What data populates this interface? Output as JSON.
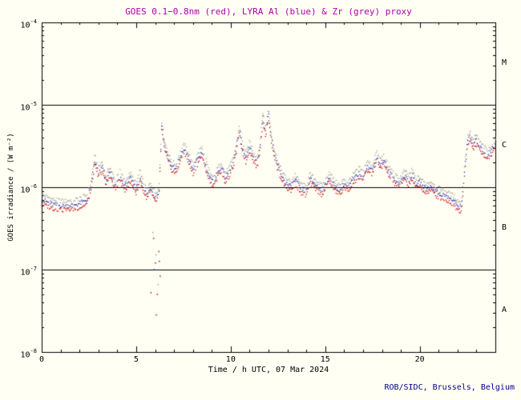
{
  "page": {
    "background": "#fffff4"
  },
  "title": {
    "text": "GOES 0.1−0.8nm (red), LYRA Al (blue) & Zr (grey) proxy",
    "color": "#aa00aa"
  },
  "footer": {
    "text": "ROB/SIDC, Brussels, Belgium",
    "color": "#00008b"
  },
  "colors": {
    "red": "#cc0000",
    "blue": "#2828b4",
    "grey": "#a0a0a0",
    "axis": "#000000",
    "tick_text": "#000000"
  },
  "chart_data": {
    "type": "scatter",
    "title": "GOES 0.1−0.8nm (red), LYRA Al (blue) & Zr (grey) proxy",
    "xlabel": "Time / h UTC, 07 Mar 2024",
    "ylabel": "GOES irradiance / (W m⁻²)",
    "xlim": [
      0,
      24
    ],
    "x_major_ticks": [
      0,
      5,
      10,
      15,
      20
    ],
    "x_minor_step": 1,
    "ylog_lim": [
      -8,
      -4
    ],
    "y_decade_ticks": [
      -4,
      -5,
      -6,
      -7,
      -8
    ],
    "grid": false,
    "legend": "in-title",
    "class_boundary_lines_log": [
      -5,
      -6,
      -7
    ],
    "flare_classes": [
      {
        "label": "M",
        "center_log": -4.5
      },
      {
        "label": "C",
        "center_log": -5.5
      },
      {
        "label": "B",
        "center_log": -6.5
      },
      {
        "label": "A",
        "center_log": -7.5
      }
    ],
    "series": [
      {
        "name": "LYRA Zr proxy",
        "color_key": "grey",
        "log_offset": 0.11
      },
      {
        "name": "LYRA Al proxy",
        "color_key": "blue",
        "log_offset": 0.05
      },
      {
        "name": "GOES 0.1-0.8nm",
        "color_key": "red",
        "log_offset": 0.0
      }
    ],
    "base_keypoints_log10": [
      [
        0.0,
        -6.2
      ],
      [
        0.3,
        -6.23
      ],
      [
        0.6,
        -6.26
      ],
      [
        0.9,
        -6.27
      ],
      [
        1.2,
        -6.28
      ],
      [
        1.5,
        -6.27
      ],
      [
        1.8,
        -6.26
      ],
      [
        2.1,
        -6.24
      ],
      [
        2.4,
        -6.2
      ],
      [
        2.6,
        -6.05
      ],
      [
        2.8,
        -5.73
      ],
      [
        3.0,
        -5.88
      ],
      [
        3.2,
        -5.8
      ],
      [
        3.4,
        -5.98
      ],
      [
        3.6,
        -5.86
      ],
      [
        3.9,
        -6.04
      ],
      [
        4.1,
        -5.9
      ],
      [
        4.4,
        -6.04
      ],
      [
        4.7,
        -5.94
      ],
      [
        5.0,
        -6.08
      ],
      [
        5.2,
        -5.91
      ],
      [
        5.45,
        -6.1
      ],
      [
        5.6,
        -6.14
      ],
      [
        5.75,
        -6.05
      ],
      [
        6.0,
        -6.18
      ],
      [
        6.2,
        -6.12
      ],
      [
        6.28,
        -5.7
      ],
      [
        6.35,
        -5.28
      ],
      [
        6.5,
        -5.55
      ],
      [
        6.7,
        -5.7
      ],
      [
        6.9,
        -5.8
      ],
      [
        7.1,
        -5.84
      ],
      [
        7.3,
        -5.7
      ],
      [
        7.55,
        -5.58
      ],
      [
        7.8,
        -5.72
      ],
      [
        8.0,
        -5.84
      ],
      [
        8.2,
        -5.74
      ],
      [
        8.45,
        -5.62
      ],
      [
        8.7,
        -5.8
      ],
      [
        8.9,
        -5.94
      ],
      [
        9.1,
        -6.0
      ],
      [
        9.3,
        -5.88
      ],
      [
        9.5,
        -5.8
      ],
      [
        9.7,
        -5.94
      ],
      [
        9.9,
        -5.88
      ],
      [
        10.1,
        -5.78
      ],
      [
        10.3,
        -5.58
      ],
      [
        10.45,
        -5.35
      ],
      [
        10.6,
        -5.55
      ],
      [
        10.8,
        -5.7
      ],
      [
        11.0,
        -5.55
      ],
      [
        11.2,
        -5.68
      ],
      [
        11.4,
        -5.76
      ],
      [
        11.55,
        -5.55
      ],
      [
        11.7,
        -5.2
      ],
      [
        11.85,
        -5.38
      ],
      [
        12.0,
        -5.15
      ],
      [
        12.15,
        -5.45
      ],
      [
        12.3,
        -5.65
      ],
      [
        12.6,
        -5.86
      ],
      [
        12.9,
        -6.0
      ],
      [
        13.2,
        -6.05
      ],
      [
        13.4,
        -5.95
      ],
      [
        13.7,
        -6.07
      ],
      [
        14.0,
        -6.1
      ],
      [
        14.2,
        -5.95
      ],
      [
        14.5,
        -6.02
      ],
      [
        14.8,
        -6.09
      ],
      [
        15.0,
        -6.04
      ],
      [
        15.2,
        -5.92
      ],
      [
        15.5,
        -6.04
      ],
      [
        15.8,
        -6.09
      ],
      [
        16.0,
        -6.0
      ],
      [
        16.2,
        -6.05
      ],
      [
        16.5,
        -5.95
      ],
      [
        16.8,
        -5.88
      ],
      [
        17.0,
        -5.92
      ],
      [
        17.2,
        -5.8
      ],
      [
        17.5,
        -5.84
      ],
      [
        17.7,
        -5.68
      ],
      [
        17.9,
        -5.77
      ],
      [
        18.1,
        -5.72
      ],
      [
        18.3,
        -5.84
      ],
      [
        18.6,
        -5.94
      ],
      [
        18.9,
        -6.01
      ],
      [
        19.2,
        -5.91
      ],
      [
        19.4,
        -5.97
      ],
      [
        19.6,
        -5.9
      ],
      [
        19.8,
        -6.01
      ],
      [
        20.0,
        -5.99
      ],
      [
        20.3,
        -6.07
      ],
      [
        20.6,
        -6.04
      ],
      [
        20.9,
        -6.11
      ],
      [
        21.2,
        -6.14
      ],
      [
        21.5,
        -6.17
      ],
      [
        21.8,
        -6.22
      ],
      [
        22.0,
        -6.27
      ],
      [
        22.2,
        -6.3
      ],
      [
        22.35,
        -5.9
      ],
      [
        22.5,
        -5.52
      ],
      [
        22.65,
        -5.43
      ],
      [
        22.8,
        -5.54
      ],
      [
        23.0,
        -5.48
      ],
      [
        23.2,
        -5.57
      ],
      [
        23.4,
        -5.62
      ],
      [
        23.6,
        -5.67
      ],
      [
        23.8,
        -5.6
      ],
      [
        24.0,
        -5.52
      ]
    ],
    "outliers": [
      {
        "color_key": "red",
        "points": [
          [
            5.78,
            -7.28
          ],
          [
            5.92,
            -6.62
          ],
          [
            6.02,
            -6.92
          ],
          [
            6.06,
            -7.55
          ],
          [
            6.12,
            -7.3
          ],
          [
            6.2,
            -6.78
          ],
          [
            6.27,
            -7.08
          ]
        ]
      },
      {
        "color_key": "grey",
        "points": [
          [
            5.88,
            -6.55
          ],
          [
            6.05,
            -6.82
          ],
          [
            6.16,
            -7.18
          ]
        ]
      },
      {
        "color_key": "blue",
        "points": [
          [
            5.95,
            -7.0
          ],
          [
            6.22,
            -6.9
          ]
        ]
      }
    ]
  }
}
